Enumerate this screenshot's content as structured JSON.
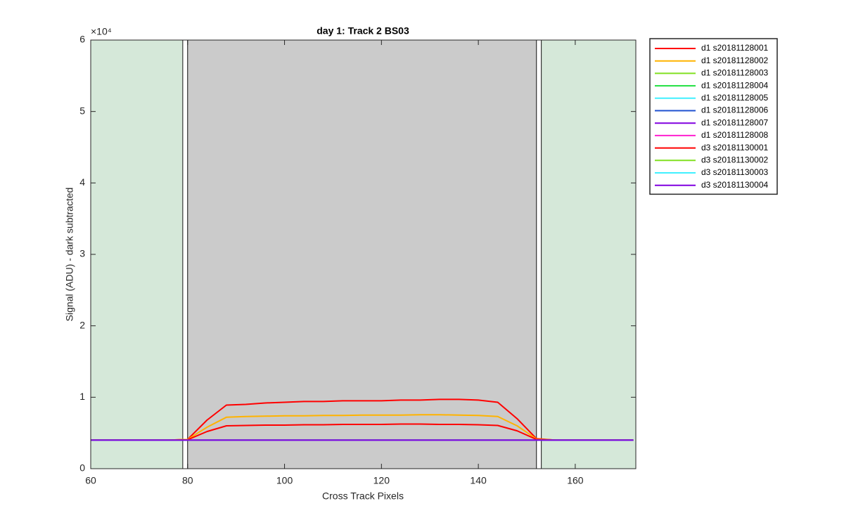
{
  "chart_data": {
    "type": "line",
    "title": "day 1: Track 2  BS03",
    "x_label": "Cross Track Pixels",
    "y_label": "Signal (ADU) - dark subtracted",
    "y_exponent": "×10⁴",
    "xlim": [
      60,
      172.5
    ],
    "ylim": [
      0,
      60000
    ],
    "xticks": [
      60,
      80,
      100,
      120,
      140,
      160
    ],
    "yticks": [
      {
        "value": 0,
        "label": "0"
      },
      {
        "value": 10000,
        "label": "1"
      },
      {
        "value": 20000,
        "label": "2"
      },
      {
        "value": 30000,
        "label": "3"
      },
      {
        "value": 40000,
        "label": "4"
      },
      {
        "value": 50000,
        "label": "5"
      },
      {
        "value": 60000,
        "label": "6"
      }
    ],
    "grid": false,
    "legend": "outside-top-right",
    "regions": [
      {
        "x": [
          60,
          79
        ],
        "color": "#d5e8d9"
      },
      {
        "x": [
          79,
          80
        ],
        "color": "#ffffff"
      },
      {
        "x": [
          80,
          152
        ],
        "color": "#cbcbcb"
      },
      {
        "x": [
          152,
          153
        ],
        "color": "#ffffff"
      },
      {
        "x": [
          153,
          172.5
        ],
        "color": "#d5e8d9"
      }
    ],
    "x": [
      60,
      64,
      68,
      72,
      76,
      80,
      84,
      88,
      92,
      96,
      100,
      104,
      108,
      112,
      116,
      120,
      124,
      128,
      132,
      136,
      140,
      144,
      148,
      152,
      156,
      160,
      164,
      168,
      172
    ],
    "series": [
      {
        "name": "d1 s20181128001",
        "color": "#ff0000",
        "values": [
          4000,
          4000,
          4000,
          4000,
          4000,
          4100,
          6800,
          8900,
          9000,
          9200,
          9300,
          9400,
          9400,
          9500,
          9500,
          9500,
          9600,
          9600,
          9700,
          9700,
          9600,
          9300,
          7000,
          4200,
          4000,
          4000,
          4000,
          4000,
          4000
        ]
      },
      {
        "name": "d1 s20181128002",
        "color": "#ffb300",
        "values": [
          4000,
          4000,
          4000,
          4000,
          4000,
          4100,
          5800,
          7200,
          7300,
          7350,
          7400,
          7400,
          7450,
          7450,
          7500,
          7500,
          7500,
          7550,
          7550,
          7500,
          7450,
          7300,
          6000,
          4150,
          4000,
          4000,
          4000,
          4000,
          4000
        ]
      },
      {
        "name": "d1 s20181128003",
        "color": "#80e020",
        "values": [
          4000,
          4000,
          4000,
          4000,
          4000,
          4000,
          4000,
          4000,
          4000,
          4000,
          4000,
          4000,
          4000,
          4000,
          4000,
          4000,
          4000,
          4000,
          4000,
          4000,
          4000,
          4000,
          4000,
          4000,
          4000,
          4000,
          4000,
          4000,
          4000
        ]
      },
      {
        "name": "d1 s20181128004",
        "color": "#20e040",
        "values": [
          4000,
          4000,
          4000,
          4000,
          4000,
          4000,
          4000,
          4000,
          4000,
          4000,
          4000,
          4000,
          4000,
          4000,
          4000,
          4000,
          4000,
          4000,
          4000,
          4000,
          4000,
          4000,
          4000,
          4000,
          4000,
          4000,
          4000,
          4000,
          4000
        ]
      },
      {
        "name": "d1 s20181128005",
        "color": "#40f0ff",
        "values": [
          4000,
          4000,
          4000,
          4000,
          4000,
          4000,
          4000,
          4000,
          4000,
          4000,
          4000,
          4000,
          4000,
          4000,
          4000,
          4000,
          4000,
          4000,
          4000,
          4000,
          4000,
          4000,
          4000,
          4000,
          4000,
          4000,
          4000,
          4000,
          4000
        ]
      },
      {
        "name": "d1 s20181128006",
        "color": "#1e50d0",
        "values": [
          4000,
          4000,
          4000,
          4000,
          4000,
          4000,
          4000,
          4000,
          4000,
          4000,
          4000,
          4000,
          4000,
          4000,
          4000,
          4000,
          4000,
          4000,
          4000,
          4000,
          4000,
          4000,
          4000,
          4000,
          4000,
          4000,
          4000,
          4000,
          4000
        ]
      },
      {
        "name": "d1 s20181128007",
        "color": "#8000e0",
        "values": [
          4000,
          4000,
          4000,
          4000,
          4000,
          4000,
          4000,
          4000,
          4000,
          4000,
          4000,
          4000,
          4000,
          4000,
          4000,
          4000,
          4000,
          4000,
          4000,
          4000,
          4000,
          4000,
          4000,
          4000,
          4000,
          4000,
          4000,
          4000,
          4000
        ]
      },
      {
        "name": "d1 s20181128008",
        "color": "#ff20d0",
        "values": [
          4000,
          4000,
          4000,
          4000,
          4000,
          4000,
          4000,
          4000,
          4000,
          4000,
          4000,
          4000,
          4000,
          4000,
          4000,
          4000,
          4000,
          4000,
          4000,
          4000,
          4000,
          4000,
          4000,
          4000,
          4000,
          4000,
          4000,
          4000,
          4000
        ]
      },
      {
        "name": "d3 s20181130001",
        "color": "#ff0000",
        "values": [
          4000,
          4000,
          4000,
          4000,
          4000,
          4050,
          5200,
          6000,
          6050,
          6100,
          6100,
          6150,
          6150,
          6200,
          6200,
          6200,
          6250,
          6250,
          6200,
          6200,
          6150,
          6050,
          5300,
          4100,
          4000,
          4000,
          4000,
          4000,
          4000
        ]
      },
      {
        "name": "d3 s20181130002",
        "color": "#80e020",
        "values": [
          4000,
          4000,
          4000,
          4000,
          4000,
          4000,
          4000,
          4000,
          4000,
          4000,
          4000,
          4000,
          4000,
          4000,
          4000,
          4000,
          4000,
          4000,
          4000,
          4000,
          4000,
          4000,
          4000,
          4000,
          4000,
          4000,
          4000,
          4000,
          4000
        ]
      },
      {
        "name": "d3 s20181130003",
        "color": "#40f0ff",
        "values": [
          4000,
          4000,
          4000,
          4000,
          4000,
          4000,
          4000,
          4000,
          4000,
          4000,
          4000,
          4000,
          4000,
          4000,
          4000,
          4000,
          4000,
          4000,
          4000,
          4000,
          4000,
          4000,
          4000,
          4000,
          4000,
          4000,
          4000,
          4000,
          4000
        ]
      },
      {
        "name": "d3 s20181130004",
        "color": "#8000e0",
        "values": [
          4000,
          4000,
          4000,
          4000,
          4000,
          4000,
          4000,
          4000,
          4000,
          4000,
          4000,
          4000,
          4000,
          4000,
          4000,
          4000,
          4000,
          4000,
          4000,
          4000,
          4000,
          4000,
          4000,
          4000,
          4000,
          4000,
          4000,
          4000,
          4000
        ]
      }
    ]
  }
}
